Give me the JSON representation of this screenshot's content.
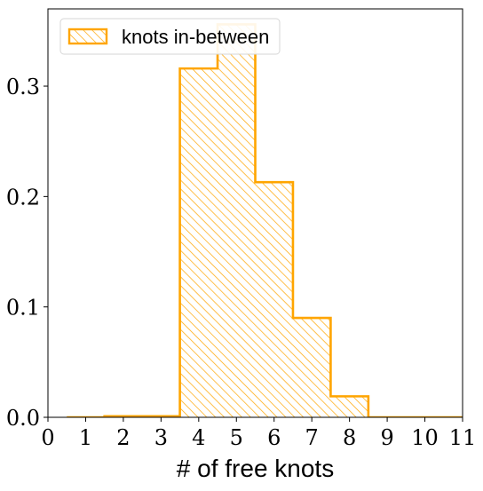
{
  "chart_data": {
    "type": "bar",
    "title": "",
    "xlabel": "# of free knots",
    "ylabel": "",
    "x_ticks": [
      0,
      1,
      2,
      3,
      4,
      5,
      6,
      7,
      8,
      9,
      10,
      11
    ],
    "x_tick_labels": [
      "0",
      "1",
      "2",
      "3",
      "4",
      "5",
      "6",
      "7",
      "8",
      "9",
      "10",
      "11"
    ],
    "y_ticks": [
      0.0,
      0.1,
      0.2,
      0.3
    ],
    "y_tick_labels": [
      "0.0",
      "0.1",
      "0.2",
      "0.3"
    ],
    "xlim": [
      0,
      11
    ],
    "ylim": [
      0,
      0.37
    ],
    "bins": [
      {
        "left": 0.5,
        "right": 1.5,
        "value": 0.0
      },
      {
        "left": 1.5,
        "right": 2.5,
        "value": 0.001
      },
      {
        "left": 2.5,
        "right": 3.5,
        "value": 0.001
      },
      {
        "left": 3.5,
        "right": 4.5,
        "value": 0.316
      },
      {
        "left": 4.5,
        "right": 5.5,
        "value": 0.356
      },
      {
        "left": 5.5,
        "right": 6.5,
        "value": 0.213
      },
      {
        "left": 6.5,
        "right": 7.5,
        "value": 0.09
      },
      {
        "left": 7.5,
        "right": 8.5,
        "value": 0.019
      },
      {
        "left": 8.5,
        "right": 9.5,
        "value": 0.0
      },
      {
        "left": 9.5,
        "right": 10.5,
        "value": 0.0
      },
      {
        "left": 10.5,
        "right": 11.5,
        "value": 0.0
      }
    ],
    "series": [
      {
        "name": "knots in-between",
        "color": "#FFA500",
        "style": "step-hatched"
      }
    ],
    "legend": {
      "position": "top-left",
      "entries": [
        "knots in-between"
      ]
    },
    "grid": false
  }
}
